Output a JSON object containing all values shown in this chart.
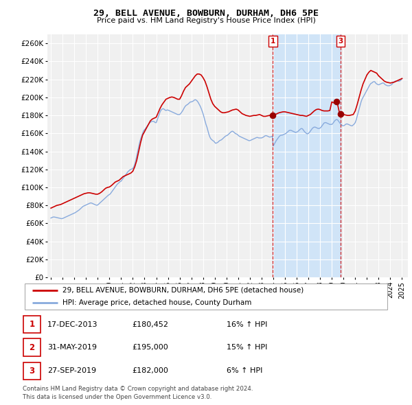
{
  "title": "29, BELL AVENUE, BOWBURN, DURHAM, DH6 5PE",
  "subtitle": "Price paid vs. HM Land Registry's House Price Index (HPI)",
  "plot_bg_color": "#f0f0f0",
  "grid_color": "white",
  "red_line_color": "#cc0000",
  "blue_line_color": "#88aadd",
  "span_color": "#d0e4f7",
  "ylim": [
    0,
    270000
  ],
  "xlim": [
    1994.7,
    2025.5
  ],
  "yticks": [
    0,
    20000,
    40000,
    60000,
    80000,
    100000,
    120000,
    140000,
    160000,
    180000,
    200000,
    220000,
    240000,
    260000
  ],
  "ytick_labels": [
    "£0",
    "£20K",
    "£40K",
    "£60K",
    "£80K",
    "£100K",
    "£120K",
    "£140K",
    "£160K",
    "£180K",
    "£200K",
    "£220K",
    "£240K",
    "£260K"
  ],
  "legend_entries": [
    "29, BELL AVENUE, BOWBURN, DURHAM, DH6 5PE (detached house)",
    "HPI: Average price, detached house, County Durham"
  ],
  "table_rows": [
    [
      "1",
      "17-DEC-2013",
      "£180,452",
      "16% ↑ HPI"
    ],
    [
      "2",
      "31-MAY-2019",
      "£195,000",
      "15% ↑ HPI"
    ],
    [
      "3",
      "27-SEP-2019",
      "£182,000",
      "6% ↑ HPI"
    ]
  ],
  "footnote": "Contains HM Land Registry data © Crown copyright and database right 2024.\nThis data is licensed under the Open Government Licence v3.0.",
  "sale1_x": 2013.96,
  "sale2_x": 2019.42,
  "sale3_x": 2019.74,
  "sale1_y": 180452,
  "sale2_y": 195000,
  "sale3_y": 182000,
  "hpi_dates": [
    1995.0,
    1995.083,
    1995.167,
    1995.25,
    1995.333,
    1995.417,
    1995.5,
    1995.583,
    1995.667,
    1995.75,
    1995.833,
    1995.917,
    1996.0,
    1996.083,
    1996.167,
    1996.25,
    1996.333,
    1996.417,
    1996.5,
    1996.583,
    1996.667,
    1996.75,
    1996.833,
    1996.917,
    1997.0,
    1997.083,
    1997.167,
    1997.25,
    1997.333,
    1997.417,
    1997.5,
    1997.583,
    1997.667,
    1997.75,
    1997.833,
    1997.917,
    1998.0,
    1998.083,
    1998.167,
    1998.25,
    1998.333,
    1998.417,
    1998.5,
    1998.583,
    1998.667,
    1998.75,
    1998.833,
    1998.917,
    1999.0,
    1999.083,
    1999.167,
    1999.25,
    1999.333,
    1999.417,
    1999.5,
    1999.583,
    1999.667,
    1999.75,
    1999.833,
    1999.917,
    2000.0,
    2000.083,
    2000.167,
    2000.25,
    2000.333,
    2000.417,
    2000.5,
    2000.583,
    2000.667,
    2000.75,
    2000.833,
    2000.917,
    2001.0,
    2001.083,
    2001.167,
    2001.25,
    2001.333,
    2001.417,
    2001.5,
    2001.583,
    2001.667,
    2001.75,
    2001.833,
    2001.917,
    2002.0,
    2002.083,
    2002.167,
    2002.25,
    2002.333,
    2002.417,
    2002.5,
    2002.583,
    2002.667,
    2002.75,
    2002.833,
    2002.917,
    2003.0,
    2003.083,
    2003.167,
    2003.25,
    2003.333,
    2003.417,
    2003.5,
    2003.583,
    2003.667,
    2003.75,
    2003.833,
    2003.917,
    2004.0,
    2004.083,
    2004.167,
    2004.25,
    2004.333,
    2004.417,
    2004.5,
    2004.583,
    2004.667,
    2004.75,
    2004.833,
    2004.917,
    2005.0,
    2005.083,
    2005.167,
    2005.25,
    2005.333,
    2005.417,
    2005.5,
    2005.583,
    2005.667,
    2005.75,
    2005.833,
    2005.917,
    2006.0,
    2006.083,
    2006.167,
    2006.25,
    2006.333,
    2006.417,
    2006.5,
    2006.583,
    2006.667,
    2006.75,
    2006.833,
    2006.917,
    2007.0,
    2007.083,
    2007.167,
    2007.25,
    2007.333,
    2007.417,
    2007.5,
    2007.583,
    2007.667,
    2007.75,
    2007.833,
    2007.917,
    2008.0,
    2008.083,
    2008.167,
    2008.25,
    2008.333,
    2008.417,
    2008.5,
    2008.583,
    2008.667,
    2008.75,
    2008.833,
    2008.917,
    2009.0,
    2009.083,
    2009.167,
    2009.25,
    2009.333,
    2009.417,
    2009.5,
    2009.583,
    2009.667,
    2009.75,
    2009.833,
    2009.917,
    2010.0,
    2010.083,
    2010.167,
    2010.25,
    2010.333,
    2010.417,
    2010.5,
    2010.583,
    2010.667,
    2010.75,
    2010.833,
    2010.917,
    2011.0,
    2011.083,
    2011.167,
    2011.25,
    2011.333,
    2011.417,
    2011.5,
    2011.583,
    2011.667,
    2011.75,
    2011.833,
    2011.917,
    2012.0,
    2012.083,
    2012.167,
    2012.25,
    2012.333,
    2012.417,
    2012.5,
    2012.583,
    2012.667,
    2012.75,
    2012.833,
    2012.917,
    2013.0,
    2013.083,
    2013.167,
    2013.25,
    2013.333,
    2013.417,
    2013.5,
    2013.583,
    2013.667,
    2013.75,
    2013.833,
    2013.917,
    2014.0,
    2014.083,
    2014.167,
    2014.25,
    2014.333,
    2014.417,
    2014.5,
    2014.583,
    2014.667,
    2014.75,
    2014.833,
    2014.917,
    2015.0,
    2015.083,
    2015.167,
    2015.25,
    2015.333,
    2015.417,
    2015.5,
    2015.583,
    2015.667,
    2015.75,
    2015.833,
    2015.917,
    2016.0,
    2016.083,
    2016.167,
    2016.25,
    2016.333,
    2016.417,
    2016.5,
    2016.583,
    2016.667,
    2016.75,
    2016.833,
    2016.917,
    2017.0,
    2017.083,
    2017.167,
    2017.25,
    2017.333,
    2017.417,
    2017.5,
    2017.583,
    2017.667,
    2017.75,
    2017.833,
    2017.917,
    2018.0,
    2018.083,
    2018.167,
    2018.25,
    2018.333,
    2018.417,
    2018.5,
    2018.583,
    2018.667,
    2018.75,
    2018.833,
    2018.917,
    2019.0,
    2019.083,
    2019.167,
    2019.25,
    2019.333,
    2019.417,
    2019.5,
    2019.583,
    2019.667,
    2019.75,
    2019.833,
    2019.917,
    2020.0,
    2020.083,
    2020.167,
    2020.25,
    2020.333,
    2020.417,
    2020.5,
    2020.583,
    2020.667,
    2020.75,
    2020.833,
    2020.917,
    2021.0,
    2021.083,
    2021.167,
    2021.25,
    2021.333,
    2021.417,
    2021.5,
    2021.583,
    2021.667,
    2021.75,
    2021.833,
    2021.917,
    2022.0,
    2022.083,
    2022.167,
    2022.25,
    2022.333,
    2022.417,
    2022.5,
    2022.583,
    2022.667,
    2022.75,
    2022.833,
    2022.917,
    2023.0,
    2023.083,
    2023.167,
    2023.25,
    2023.333,
    2023.417,
    2023.5,
    2023.583,
    2023.667,
    2023.75,
    2023.833,
    2023.917,
    2024.0,
    2024.083,
    2024.167,
    2024.25,
    2024.333,
    2024.417,
    2024.5,
    2024.583,
    2024.667,
    2024.75,
    2024.833,
    2024.917,
    2025.0
  ],
  "hpi_values": [
    66000,
    66500,
    67000,
    67200,
    67000,
    66800,
    66500,
    66300,
    66000,
    65800,
    65500,
    65300,
    65500,
    66000,
    66500,
    67000,
    67500,
    68000,
    68500,
    69000,
    69500,
    70000,
    70500,
    71000,
    71500,
    72000,
    72800,
    73500,
    74200,
    75000,
    76000,
    77000,
    78000,
    79000,
    79500,
    80000,
    80500,
    81000,
    81500,
    82000,
    82500,
    82800,
    82500,
    82000,
    81500,
    81000,
    80500,
    80200,
    80500,
    81500,
    82500,
    83500,
    84500,
    85500,
    86500,
    87500,
    88500,
    89500,
    90500,
    91500,
    92000,
    93000,
    94500,
    96000,
    97500,
    99000,
    100500,
    102000,
    103500,
    104500,
    105500,
    106500,
    107000,
    108500,
    110000,
    111500,
    113000,
    114500,
    116000,
    117500,
    118500,
    119500,
    120000,
    120500,
    121000,
    123000,
    126000,
    130000,
    135000,
    140000,
    145000,
    150000,
    154000,
    157000,
    160000,
    163000,
    164000,
    165500,
    167000,
    168500,
    170000,
    171500,
    172500,
    173000,
    173500,
    173500,
    173000,
    172000,
    172000,
    175000,
    178000,
    181000,
    184000,
    186000,
    187000,
    187500,
    187000,
    186000,
    185500,
    186000,
    186000,
    185500,
    185000,
    184500,
    184000,
    183500,
    183000,
    182500,
    182000,
    181500,
    181000,
    181000,
    181000,
    182000,
    183500,
    185000,
    187000,
    189000,
    190500,
    191500,
    192000,
    193000,
    194000,
    195000,
    195000,
    195500,
    196000,
    197000,
    197500,
    197000,
    196000,
    194500,
    192500,
    190500,
    188000,
    185000,
    182000,
    178000,
    174000,
    170000,
    167000,
    163000,
    159000,
    156000,
    154000,
    153000,
    152000,
    151500,
    150000,
    149000,
    149500,
    150000,
    151000,
    152000,
    152500,
    153000,
    154000,
    155000,
    156000,
    157000,
    157500,
    158000,
    159000,
    160000,
    161000,
    162000,
    162500,
    162000,
    161000,
    160000,
    159500,
    159000,
    158000,
    157000,
    156500,
    156000,
    155500,
    155000,
    154500,
    154000,
    153500,
    153000,
    152500,
    152000,
    152000,
    152500,
    153000,
    153500,
    154000,
    154500,
    155000,
    155500,
    155500,
    155000,
    155000,
    155000,
    155000,
    155500,
    156000,
    157000,
    157500,
    157500,
    157000,
    156500,
    156000,
    156000,
    156500,
    157000,
    146000,
    148000,
    150000,
    152000,
    153500,
    155000,
    156500,
    157500,
    158000,
    158000,
    158500,
    159000,
    159500,
    160000,
    161000,
    162000,
    163000,
    163500,
    163500,
    163000,
    162500,
    162000,
    161500,
    161000,
    161500,
    162000,
    163000,
    164000,
    165000,
    165500,
    165000,
    163500,
    162000,
    161000,
    160000,
    159500,
    160000,
    161000,
    162500,
    164000,
    165500,
    166500,
    167000,
    167000,
    166500,
    166000,
    165500,
    165500,
    166000,
    167000,
    168500,
    170000,
    171500,
    172000,
    172000,
    171500,
    171000,
    170500,
    170000,
    170000,
    170000,
    171000,
    172500,
    174000,
    175000,
    175500,
    175000,
    173500,
    172000,
    170500,
    169500,
    168500,
    168500,
    169000,
    170000,
    170500,
    170500,
    170000,
    169500,
    169000,
    168500,
    168500,
    169500,
    170500,
    172000,
    175000,
    179000,
    183000,
    187000,
    191000,
    195000,
    198000,
    200000,
    202000,
    204000,
    206000,
    208000,
    210000,
    212000,
    214000,
    215500,
    216000,
    217000,
    217500,
    217500,
    216000,
    215000,
    214500,
    214000,
    214500,
    215000,
    215500,
    216000,
    216000,
    215000,
    214000,
    213500,
    213000,
    213000,
    213000,
    213500,
    214000,
    215000,
    216500,
    217500,
    218000,
    218500,
    218500,
    218000,
    218000,
    218500,
    219500,
    221000
  ],
  "price_dates": [
    1995.0,
    1995.167,
    1995.333,
    1995.5,
    1995.667,
    1995.833,
    1996.0,
    1996.167,
    1996.333,
    1996.5,
    1996.667,
    1996.833,
    1997.0,
    1997.167,
    1997.333,
    1997.5,
    1997.667,
    1997.833,
    1998.0,
    1998.167,
    1998.333,
    1998.5,
    1998.667,
    1998.833,
    1999.0,
    1999.167,
    1999.333,
    1999.5,
    1999.667,
    1999.833,
    2000.0,
    2000.167,
    2000.333,
    2000.5,
    2000.667,
    2000.833,
    2001.0,
    2001.167,
    2001.333,
    2001.5,
    2001.667,
    2001.833,
    2002.0,
    2002.167,
    2002.333,
    2002.5,
    2002.667,
    2002.833,
    2003.0,
    2003.167,
    2003.333,
    2003.5,
    2003.667,
    2003.833,
    2004.0,
    2004.167,
    2004.333,
    2004.5,
    2004.667,
    2004.833,
    2005.0,
    2005.167,
    2005.333,
    2005.5,
    2005.667,
    2005.833,
    2006.0,
    2006.167,
    2006.333,
    2006.5,
    2006.667,
    2006.833,
    2007.0,
    2007.167,
    2007.333,
    2007.5,
    2007.667,
    2007.833,
    2008.0,
    2008.167,
    2008.333,
    2008.5,
    2008.667,
    2008.833,
    2009.0,
    2009.167,
    2009.333,
    2009.5,
    2009.667,
    2009.833,
    2010.0,
    2010.167,
    2010.333,
    2010.5,
    2010.667,
    2010.833,
    2011.0,
    2011.167,
    2011.333,
    2011.5,
    2011.667,
    2011.833,
    2012.0,
    2012.167,
    2012.333,
    2012.5,
    2012.667,
    2012.833,
    2013.0,
    2013.167,
    2013.333,
    2013.5,
    2013.667,
    2013.833,
    2014.0,
    2014.167,
    2014.333,
    2014.5,
    2014.667,
    2014.833,
    2015.0,
    2015.167,
    2015.333,
    2015.5,
    2015.667,
    2015.833,
    2016.0,
    2016.167,
    2016.333,
    2016.5,
    2016.667,
    2016.833,
    2017.0,
    2017.167,
    2017.333,
    2017.5,
    2017.667,
    2017.833,
    2018.0,
    2018.167,
    2018.333,
    2018.5,
    2018.667,
    2018.833,
    2019.0,
    2019.167,
    2019.333,
    2019.5,
    2019.667,
    2019.833,
    2020.0,
    2020.167,
    2020.333,
    2020.5,
    2020.667,
    2020.833,
    2021.0,
    2021.167,
    2021.333,
    2021.5,
    2021.667,
    2021.833,
    2022.0,
    2022.167,
    2022.333,
    2022.5,
    2022.667,
    2022.833,
    2023.0,
    2023.167,
    2023.333,
    2023.5,
    2023.667,
    2023.833,
    2024.0,
    2024.167,
    2024.333,
    2024.5,
    2024.667,
    2024.833,
    2025.0
  ],
  "price_values": [
    77000,
    78000,
    79000,
    80000,
    80500,
    81000,
    82000,
    83000,
    84000,
    85000,
    86000,
    87000,
    88000,
    89000,
    90000,
    91000,
    92000,
    93000,
    93500,
    94000,
    94000,
    93500,
    93000,
    92500,
    92500,
    93500,
    95000,
    97000,
    99000,
    100000,
    100500,
    102000,
    104000,
    106000,
    107000,
    108000,
    110000,
    112000,
    113000,
    114000,
    115000,
    116000,
    118000,
    123000,
    130000,
    140000,
    150000,
    158000,
    162000,
    166000,
    170000,
    174000,
    176000,
    177000,
    178000,
    183000,
    188000,
    192000,
    195000,
    198000,
    199000,
    200000,
    200500,
    200000,
    199000,
    198000,
    198000,
    202000,
    207000,
    211000,
    213000,
    215000,
    218000,
    221000,
    224000,
    226000,
    226000,
    225000,
    222000,
    218000,
    212000,
    205000,
    198000,
    193000,
    190000,
    188000,
    186000,
    184000,
    183000,
    183000,
    183500,
    184000,
    185000,
    186000,
    186500,
    187000,
    186000,
    184000,
    182000,
    181000,
    180000,
    179500,
    179000,
    179500,
    180000,
    180000,
    180500,
    181000,
    180000,
    179000,
    179000,
    179500,
    180000,
    180500,
    180452,
    181000,
    182000,
    183000,
    183500,
    184000,
    184000,
    183500,
    183000,
    182500,
    182000,
    181500,
    181000,
    180500,
    180000,
    180000,
    179500,
    179000,
    180000,
    181000,
    183000,
    185000,
    186500,
    187000,
    186500,
    185500,
    185000,
    185000,
    185000,
    185500,
    195000,
    194000,
    193000,
    192000,
    182000,
    181500,
    181000,
    180500,
    180000,
    180000,
    180500,
    181000,
    185000,
    192000,
    200000,
    208000,
    215000,
    220000,
    225000,
    228000,
    230000,
    229000,
    228000,
    227000,
    224000,
    222000,
    220000,
    218000,
    217000,
    216500,
    216000,
    216500,
    217000,
    218000,
    219000,
    220000,
    221000
  ]
}
